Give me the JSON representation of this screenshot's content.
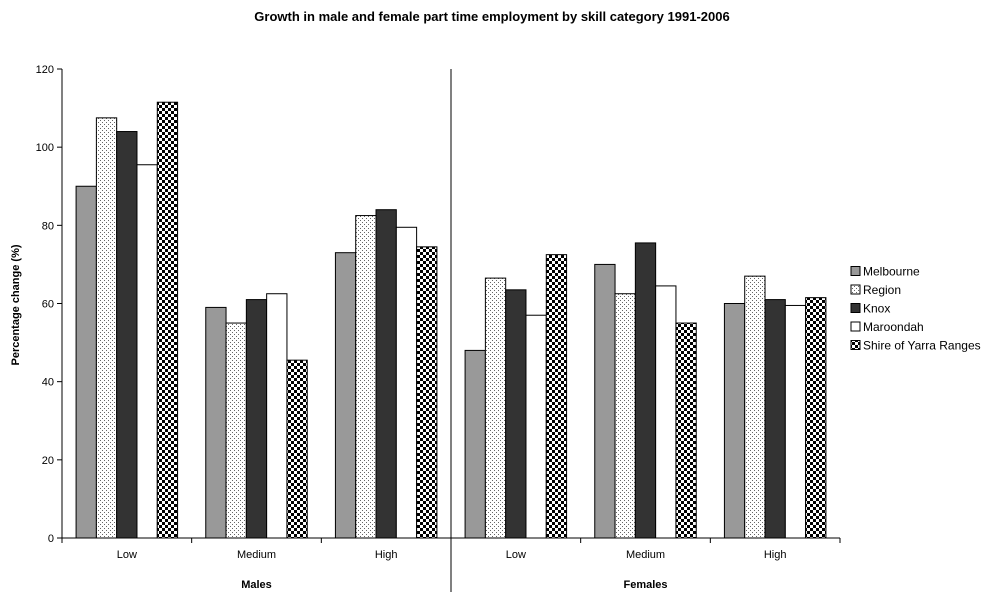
{
  "chart_data": {
    "type": "bar",
    "title": "Growth in male and female part time employment by skill category 1991-2006",
    "ylabel": "Percentage change (%)",
    "ylim": [
      0,
      120
    ],
    "yticks": [
      0,
      20,
      40,
      60,
      80,
      100,
      120
    ],
    "grid": false,
    "legend_position": "right",
    "groups": [
      {
        "name": "Males",
        "categories": [
          "Low",
          "Medium",
          "High"
        ]
      },
      {
        "name": "Females",
        "categories": [
          "Low",
          "Medium",
          "High"
        ]
      }
    ],
    "categories": [
      "Low",
      "Medium",
      "High",
      "Low",
      "Medium",
      "High"
    ],
    "series": [
      {
        "name": "Melbourne",
        "fill": "#999999",
        "pattern": "solid",
        "values": [
          90,
          59,
          73,
          48,
          70,
          60
        ]
      },
      {
        "name": "Region",
        "fill": "#ffffff",
        "pattern": "dots",
        "values": [
          107.5,
          55,
          82.5,
          66.5,
          62.5,
          67
        ]
      },
      {
        "name": "Knox",
        "fill": "#333333",
        "pattern": "solid",
        "values": [
          104,
          61,
          84,
          63.5,
          75.5,
          61
        ]
      },
      {
        "name": "Maroondah",
        "fill": "#ffffff",
        "pattern": "solid",
        "values": [
          95.5,
          62.5,
          79.5,
          57,
          64.5,
          59.5
        ]
      },
      {
        "name": "Shire of Yarra Ranges",
        "fill": "#000000",
        "pattern": "checker",
        "values": [
          111.5,
          45.5,
          74.5,
          72.5,
          55,
          61.5
        ]
      }
    ]
  }
}
